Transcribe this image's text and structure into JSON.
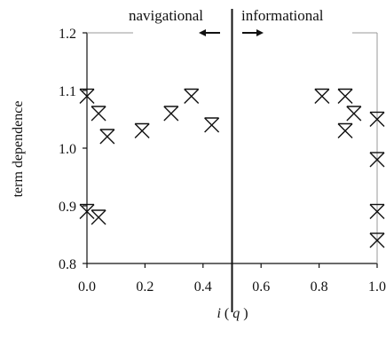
{
  "chart_data": {
    "type": "scatter",
    "xlabel": "i(q)",
    "xlabel_parts": {
      "symbol": "i",
      "open_paren": "(",
      "variable": "q",
      "close_paren": ")"
    },
    "ylabel": "term dependence",
    "xlim": [
      0.0,
      1.0
    ],
    "ylim": [
      0.8,
      1.2
    ],
    "xticks": [
      0.0,
      0.2,
      0.4,
      0.6,
      0.8,
      1.0
    ],
    "yticks": [
      0.8,
      0.9,
      1.0,
      1.1,
      1.2
    ],
    "xtick_labels": [
      "0.0",
      "0.2",
      "0.4",
      "0.6",
      "0.8",
      "1.0"
    ],
    "ytick_labels": [
      "0.8",
      "0.9",
      "1.0",
      "1.1",
      "1.2"
    ],
    "grid": false,
    "divider_x": 0.5,
    "region_labels": {
      "left": "navigational",
      "right": "informational"
    },
    "marker": "asterisk",
    "color": "#111111",
    "points": [
      {
        "x": 0.0,
        "y": 1.09
      },
      {
        "x": 0.04,
        "y": 1.06
      },
      {
        "x": 0.07,
        "y": 1.02
      },
      {
        "x": 0.19,
        "y": 1.03
      },
      {
        "x": 0.29,
        "y": 1.06
      },
      {
        "x": 0.36,
        "y": 1.09
      },
      {
        "x": 0.43,
        "y": 1.04
      },
      {
        "x": 0.0,
        "y": 0.89
      },
      {
        "x": 0.04,
        "y": 0.88
      },
      {
        "x": 0.81,
        "y": 1.09
      },
      {
        "x": 0.89,
        "y": 1.09
      },
      {
        "x": 0.89,
        "y": 1.03
      },
      {
        "x": 0.92,
        "y": 1.06
      },
      {
        "x": 1.0,
        "y": 1.05
      },
      {
        "x": 1.0,
        "y": 0.98
      },
      {
        "x": 1.0,
        "y": 0.89
      },
      {
        "x": 1.0,
        "y": 0.84
      }
    ]
  }
}
